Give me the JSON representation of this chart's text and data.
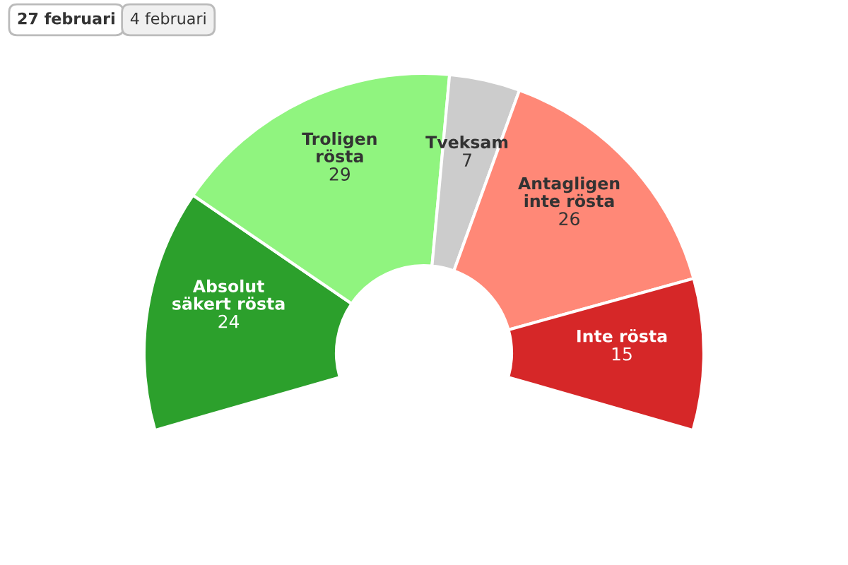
{
  "chart_data": {
    "type": "donut",
    "categories": [
      "Absolut\nsäkert rösta",
      "Troligen\nrösta",
      "Tveksam",
      "Antagligen\ninte rösta",
      "Inte rösta"
    ],
    "values": [
      24,
      29,
      7,
      26,
      15
    ],
    "colors": [
      "#2ca02c",
      "#90f47f",
      "#cccccc",
      "#ff8877",
      "#d62728"
    ],
    "data_labels": true,
    "annotations": [
      "27 februari",
      "4 februari"
    ]
  }
}
